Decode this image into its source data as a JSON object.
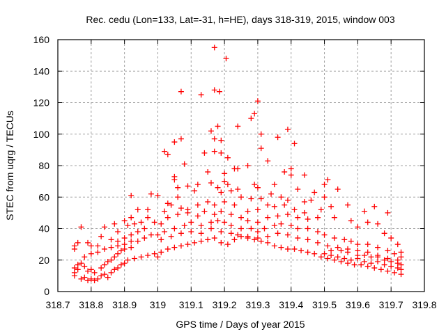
{
  "chart_data": {
    "type": "scatter",
    "title": "Rec. cedu (Lon=133, Lat=-31, h=HE), days 318-319, 2015, window 003",
    "xlabel": "GPS time / Days of year 2015",
    "ylabel": "STEC from uqrg / TECUs",
    "xlim": [
      318.7,
      319.8
    ],
    "ylim": [
      0,
      160
    ],
    "grid": true,
    "xticks": [
      "318.7",
      "318.8",
      "318.9",
      "319",
      "319.1",
      "319.2",
      "319.3",
      "319.4",
      "319.5",
      "319.6",
      "319.7",
      "319.8"
    ],
    "xtick_values": [
      318.7,
      318.8,
      318.9,
      319.0,
      319.1,
      319.2,
      319.3,
      319.4,
      319.5,
      319.6,
      319.7,
      319.8
    ],
    "yticks": [
      "0",
      "20",
      "40",
      "60",
      "80",
      "100",
      "120",
      "140",
      "160"
    ],
    "ytick_values": [
      0,
      20,
      40,
      60,
      80,
      100,
      120,
      140,
      160
    ],
    "series": [
      {
        "name": "STEC",
        "color": "#ff0000",
        "marker": "plus",
        "points": [
          [
            319.17,
            155
          ],
          [
            319.205,
            148
          ],
          [
            319.07,
            127
          ],
          [
            319.13,
            125
          ],
          [
            319.17,
            128
          ],
          [
            319.185,
            127
          ],
          [
            319.3,
            121
          ],
          [
            319.29,
            113
          ],
          [
            319.28,
            110
          ],
          [
            319.24,
            105
          ],
          [
            319.18,
            105
          ],
          [
            319.16,
            102
          ],
          [
            319.31,
            100
          ],
          [
            319.39,
            103
          ],
          [
            319.36,
            98
          ],
          [
            319.17,
            97
          ],
          [
            319.19,
            96
          ],
          [
            319.07,
            97
          ],
          [
            319.05,
            95
          ],
          [
            319.41,
            94
          ],
          [
            319.31,
            91
          ],
          [
            319.02,
            89
          ],
          [
            319.03,
            87
          ],
          [
            319.14,
            88
          ],
          [
            319.17,
            89
          ],
          [
            319.19,
            88
          ],
          [
            319.08,
            81
          ],
          [
            319.27,
            80
          ],
          [
            319.33,
            83
          ],
          [
            319.21,
            85
          ],
          [
            319.23,
            78
          ],
          [
            319.24,
            78
          ],
          [
            319.15,
            76
          ],
          [
            319.2,
            75
          ],
          [
            319.38,
            76
          ],
          [
            319.4,
            78
          ],
          [
            319.05,
            73
          ],
          [
            319.05,
            71
          ],
          [
            319.4,
            74
          ],
          [
            319.44,
            74
          ],
          [
            319.2,
            70
          ],
          [
            319.21,
            68
          ],
          [
            319.16,
            69
          ],
          [
            319.12,
            68
          ],
          [
            319.09,
            67
          ],
          [
            319.06,
            66
          ],
          [
            319.3,
            66
          ],
          [
            319.35,
            68
          ],
          [
            319.29,
            68
          ],
          [
            319.24,
            65
          ],
          [
            319.22,
            64
          ],
          [
            319.18,
            66
          ],
          [
            319.19,
            63
          ],
          [
            319.34,
            62
          ],
          [
            319.42,
            65
          ],
          [
            319.47,
            63
          ],
          [
            319.5,
            68
          ],
          [
            319.51,
            71
          ],
          [
            319.54,
            65
          ],
          [
            319.37,
            60
          ],
          [
            319.39,
            58
          ],
          [
            319.25,
            60
          ],
          [
            319.28,
            59
          ],
          [
            319.31,
            59
          ],
          [
            319.11,
            64
          ],
          [
            318.92,
            61
          ],
          [
            318.98,
            62
          ],
          [
            319.0,
            61
          ],
          [
            319.03,
            56
          ],
          [
            319.06,
            60
          ],
          [
            319.44,
            57
          ],
          [
            319.46,
            58
          ],
          [
            319.5,
            60
          ],
          [
            319.57,
            55
          ],
          [
            319.65,
            54
          ],
          [
            319.69,
            50
          ],
          [
            319.62,
            51
          ],
          [
            319.52,
            54
          ],
          [
            319.49,
            52
          ],
          [
            319.44,
            50
          ],
          [
            319.41,
            52
          ],
          [
            319.38,
            55
          ],
          [
            319.35,
            54
          ],
          [
            319.33,
            55
          ],
          [
            319.3,
            52
          ],
          [
            319.27,
            51
          ],
          [
            319.23,
            55
          ],
          [
            319.2,
            57
          ],
          [
            319.17,
            55
          ],
          [
            319.15,
            57
          ],
          [
            319.12,
            55
          ],
          [
            319.09,
            52
          ],
          [
            319.07,
            53
          ],
          [
            319.04,
            55
          ],
          [
            319.02,
            51
          ],
          [
            318.97,
            52
          ],
          [
            318.94,
            52
          ],
          [
            318.92,
            47
          ],
          [
            318.9,
            45
          ],
          [
            318.87,
            43
          ],
          [
            318.84,
            41
          ],
          [
            318.77,
            41
          ],
          [
            318.75,
            27
          ],
          [
            318.75,
            29
          ],
          [
            318.76,
            31
          ],
          [
            318.79,
            31
          ],
          [
            318.8,
            29
          ],
          [
            318.82,
            29
          ],
          [
            318.83,
            35
          ],
          [
            318.86,
            33
          ],
          [
            318.88,
            38
          ],
          [
            318.91,
            42
          ],
          [
            318.93,
            43
          ],
          [
            318.95,
            44
          ],
          [
            318.97,
            47
          ],
          [
            318.99,
            44
          ],
          [
            319.01,
            43
          ],
          [
            319.03,
            47
          ],
          [
            319.06,
            49
          ],
          [
            319.09,
            50
          ],
          [
            319.12,
            48
          ],
          [
            319.14,
            51
          ],
          [
            319.17,
            49
          ],
          [
            319.19,
            51
          ],
          [
            319.22,
            49
          ],
          [
            319.25,
            47
          ],
          [
            319.27,
            45
          ],
          [
            319.3,
            44
          ],
          [
            319.33,
            47
          ],
          [
            319.36,
            48
          ],
          [
            319.39,
            49
          ],
          [
            319.42,
            47
          ],
          [
            319.45,
            46
          ],
          [
            319.48,
            47
          ],
          [
            319.53,
            47
          ],
          [
            319.58,
            45
          ],
          [
            319.6,
            41
          ],
          [
            319.63,
            44
          ],
          [
            319.66,
            43
          ],
          [
            319.68,
            37
          ],
          [
            319.7,
            34
          ],
          [
            319.72,
            30
          ],
          [
            319.73,
            25
          ],
          [
            318.88,
            32
          ],
          [
            318.9,
            34
          ],
          [
            318.92,
            36
          ],
          [
            318.94,
            38
          ],
          [
            318.96,
            40
          ],
          [
            318.98,
            36
          ],
          [
            319.0,
            36
          ],
          [
            319.02,
            38
          ],
          [
            319.05,
            40
          ],
          [
            319.08,
            42
          ],
          [
            319.1,
            44
          ],
          [
            319.13,
            42
          ],
          [
            319.16,
            44
          ],
          [
            319.18,
            45
          ],
          [
            319.2,
            44
          ],
          [
            319.22,
            42
          ],
          [
            319.25,
            40
          ],
          [
            319.28,
            40
          ],
          [
            319.3,
            38
          ],
          [
            319.32,
            40
          ],
          [
            319.35,
            42
          ],
          [
            319.37,
            43
          ],
          [
            319.4,
            42
          ],
          [
            319.42,
            40
          ],
          [
            319.45,
            40
          ],
          [
            319.48,
            38
          ],
          [
            319.5,
            36
          ],
          [
            319.53,
            34
          ],
          [
            319.56,
            33
          ],
          [
            319.58,
            32
          ],
          [
            319.6,
            30
          ],
          [
            319.63,
            30
          ],
          [
            319.66,
            28
          ],
          [
            319.69,
            26
          ],
          [
            319.71,
            24
          ],
          [
            319.73,
            22
          ],
          [
            318.78,
            22
          ],
          [
            318.8,
            24
          ],
          [
            318.82,
            25
          ],
          [
            318.84,
            27
          ],
          [
            318.86,
            28
          ],
          [
            318.88,
            29
          ],
          [
            318.9,
            30
          ],
          [
            318.92,
            32
          ],
          [
            318.94,
            32
          ],
          [
            318.96,
            34
          ],
          [
            319.01,
            33
          ],
          [
            319.04,
            35
          ],
          [
            319.07,
            37
          ],
          [
            319.1,
            38
          ],
          [
            319.13,
            37
          ],
          [
            319.16,
            40
          ],
          [
            319.19,
            38
          ],
          [
            319.22,
            37
          ],
          [
            319.24,
            36
          ],
          [
            319.27,
            35
          ],
          [
            319.3,
            34
          ],
          [
            319.33,
            35
          ],
          [
            319.36,
            37
          ],
          [
            319.39,
            36
          ],
          [
            319.42,
            34
          ],
          [
            319.45,
            33
          ],
          [
            319.48,
            31
          ],
          [
            319.51,
            29
          ],
          [
            319.54,
            28
          ],
          [
            319.57,
            27
          ],
          [
            319.6,
            26
          ],
          [
            319.63,
            25
          ],
          [
            319.66,
            23
          ],
          [
            319.69,
            21
          ],
          [
            319.72,
            20
          ],
          [
            318.75,
            10
          ],
          [
            318.75,
            12
          ],
          [
            318.76,
            14
          ],
          [
            318.77,
            8
          ],
          [
            318.78,
            9
          ],
          [
            318.79,
            7
          ],
          [
            318.8,
            8
          ],
          [
            318.81,
            7
          ],
          [
            318.82,
            8
          ],
          [
            318.83,
            10
          ],
          [
            318.84,
            11
          ],
          [
            318.85,
            9
          ],
          [
            318.86,
            12
          ],
          [
            318.87,
            14
          ],
          [
            318.88,
            15
          ],
          [
            318.89,
            17
          ],
          [
            318.9,
            18
          ],
          [
            318.91,
            20
          ],
          [
            318.93,
            21
          ],
          [
            318.95,
            22
          ],
          [
            318.97,
            23
          ],
          [
            318.99,
            24
          ],
          [
            319.0,
            22
          ],
          [
            319.01,
            25
          ],
          [
            319.03,
            27
          ],
          [
            319.05,
            28
          ],
          [
            319.07,
            29
          ],
          [
            319.09,
            30
          ],
          [
            319.11,
            31
          ],
          [
            319.13,
            32
          ],
          [
            319.15,
            33
          ],
          [
            319.17,
            34
          ],
          [
            319.19,
            31
          ],
          [
            319.21,
            30
          ],
          [
            319.23,
            33
          ],
          [
            319.25,
            35
          ],
          [
            319.27,
            34
          ],
          [
            319.29,
            33
          ],
          [
            319.31,
            32
          ],
          [
            319.33,
            31
          ],
          [
            319.35,
            29
          ],
          [
            319.37,
            28
          ],
          [
            319.39,
            27
          ],
          [
            319.41,
            27
          ],
          [
            319.43,
            26
          ],
          [
            319.45,
            25
          ],
          [
            319.47,
            24
          ],
          [
            319.49,
            22
          ],
          [
            319.51,
            21
          ],
          [
            319.53,
            20
          ],
          [
            319.55,
            19
          ],
          [
            319.57,
            18
          ],
          [
            319.59,
            17
          ],
          [
            319.61,
            17
          ],
          [
            319.63,
            16
          ],
          [
            319.65,
            15
          ],
          [
            319.67,
            14
          ],
          [
            319.69,
            13
          ],
          [
            319.71,
            12
          ],
          [
            319.73,
            11
          ],
          [
            318.75,
            15
          ],
          [
            318.76,
            17
          ],
          [
            318.77,
            18
          ],
          [
            318.78,
            16
          ],
          [
            318.79,
            13
          ],
          [
            318.8,
            14
          ],
          [
            318.81,
            12
          ],
          [
            318.83,
            15
          ],
          [
            318.84,
            17
          ],
          [
            318.85,
            19
          ],
          [
            318.86,
            20
          ],
          [
            318.87,
            22
          ],
          [
            318.88,
            24
          ],
          [
            318.89,
            26
          ],
          [
            318.9,
            27
          ],
          [
            318.92,
            28
          ],
          [
            319.5,
            24
          ],
          [
            319.52,
            23
          ],
          [
            319.54,
            22
          ],
          [
            319.56,
            21
          ],
          [
            319.58,
            20
          ],
          [
            319.6,
            21
          ],
          [
            319.62,
            19
          ],
          [
            319.64,
            18
          ],
          [
            319.66,
            19
          ],
          [
            319.68,
            17
          ],
          [
            319.7,
            16
          ],
          [
            319.72,
            15
          ],
          [
            319.73,
            14
          ],
          [
            319.73,
            17
          ],
          [
            319.72,
            18
          ],
          [
            319.7,
            19
          ],
          [
            319.68,
            20
          ],
          [
            319.66,
            22
          ],
          [
            319.64,
            22
          ],
          [
            319.62,
            23
          ],
          [
            319.6,
            23
          ],
          [
            319.57,
            25
          ],
          [
            319.55,
            26
          ],
          [
            319.52,
            26
          ]
        ]
      }
    ]
  }
}
